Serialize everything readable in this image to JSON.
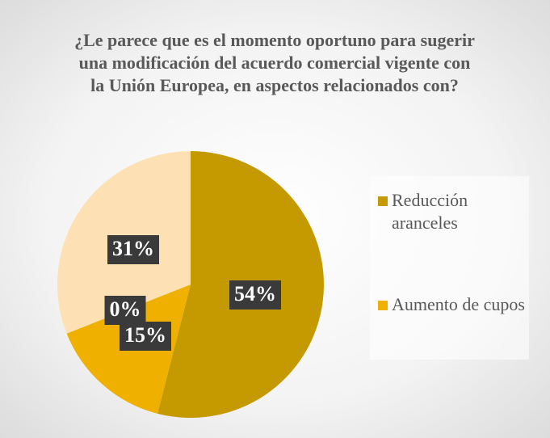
{
  "chart_data": {
    "type": "pie",
    "title": "¿Le parece que es el momento oportuno para sugerir una modificación del acuerdo comercial vigente con la Unión Europea, en aspectos relacionados con?",
    "categories": [
      "Reducción aranceles",
      "Aumento de cupos",
      null,
      null
    ],
    "values": [
      54,
      15,
      0,
      31
    ],
    "value_labels": [
      "54%",
      "15%",
      "0%",
      "31%"
    ],
    "colors": [
      "#c49a00",
      "#efb000",
      "#f6c86a",
      "#fde1b4"
    ],
    "legend": "right"
  }
}
